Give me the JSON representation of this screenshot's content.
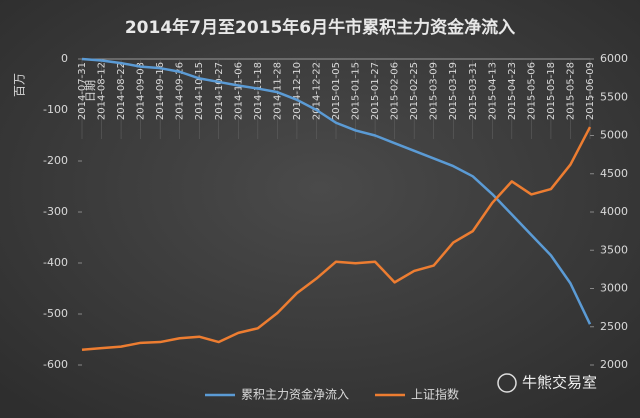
{
  "chart_data": {
    "type": "line",
    "title": "2014年7月至2015年6月牛市累积主力资金净流入",
    "y_label": "百万",
    "x_label": "日期",
    "watermark": "牛熊交易室",
    "categories": [
      "2014-07-31",
      "2014-08-12",
      "2014-08-22",
      "2014-09-03",
      "2014-09-16",
      "2014-09-26",
      "2014-10-15",
      "2014-10-27",
      "2014-11-06",
      "2014-11-18",
      "2014-11-28",
      "2014-12-10",
      "2014-12-22",
      "2015-01-05",
      "2015-01-15",
      "2015-01-27",
      "2015-02-06",
      "2015-02-25",
      "2015-03-09",
      "2015-03-19",
      "2015-03-31",
      "2015-04-13",
      "2015-04-23",
      "2015-05-06",
      "2015-05-18",
      "2015-05-28",
      "2015-06-09"
    ],
    "series": [
      {
        "name": "累积主力资金净流入",
        "color": "#5b9bd5",
        "axis": "y",
        "values": [
          0,
          -3,
          -8,
          -15,
          -18,
          -25,
          -38,
          -45,
          -52,
          -58,
          -65,
          -80,
          -100,
          -125,
          -140,
          -150,
          -165,
          -180,
          -195,
          -210,
          -230,
          -265,
          -305,
          -345,
          -385,
          -440,
          -520
        ]
      },
      {
        "name": "上证指数",
        "color": "#ed7d31",
        "axis": "y2",
        "values": [
          2200,
          2220,
          2240,
          2290,
          2300,
          2350,
          2370,
          2300,
          2420,
          2480,
          2680,
          2940,
          3130,
          3350,
          3330,
          3350,
          3080,
          3230,
          3300,
          3600,
          3750,
          4120,
          4400,
          4230,
          4300,
          4620,
          5110
        ]
      }
    ],
    "ylim": [
      -600,
      0
    ],
    "yticks": [
      0,
      -100,
      -200,
      -300,
      -400,
      -500,
      -600
    ],
    "y2lim": [
      2000,
      6000
    ],
    "y2ticks": [
      2000,
      2500,
      3000,
      3500,
      4000,
      4500,
      5000,
      5500,
      6000
    ],
    "legend": "bottom"
  }
}
